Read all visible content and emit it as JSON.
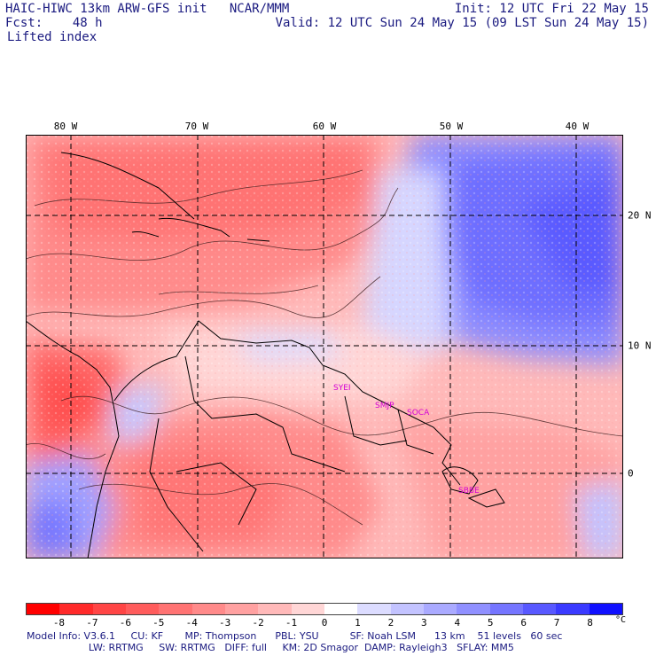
{
  "header": {
    "line1_left": "HAIC-HIWC 13km ARW-GFS init   NCAR/MMM",
    "line1_right": "Init: 12 UTC Fri 22 May 15",
    "line2_left": "Fcst:    48 h",
    "line2_right": "Valid: 12 UTC Sun 24 May 15 (09 LST Sun 24 May 15)",
    "field": "Lifted index"
  },
  "map": {
    "lon_labels": [
      "80 W",
      "70 W",
      "60 W",
      "50 W",
      "40 W"
    ],
    "lat_labels": [
      "20 N",
      "10 N",
      "0"
    ],
    "stations": [
      "SYEI",
      "SMJP",
      "SOCA",
      "SBBE"
    ],
    "station_color": "#d400d4"
  },
  "colorbar": {
    "labels": [
      "-8",
      "-7",
      "-6",
      "-5",
      "-4",
      "-3",
      "-2",
      "-1",
      "0",
      "1",
      "2",
      "3",
      "4",
      "5",
      "6",
      "7",
      "8"
    ],
    "unit": "°C",
    "colors": [
      "#ff0000",
      "#ff2a2a",
      "#ff4545",
      "#ff5c5c",
      "#ff7373",
      "#ff8a8a",
      "#ffa1a1",
      "#ffb9b9",
      "#ffd6d6",
      "#ffffff",
      "#dcdcff",
      "#c3c3ff",
      "#aaaaff",
      "#9090ff",
      "#7575ff",
      "#5858ff",
      "#3a3aff",
      "#1010ff"
    ]
  },
  "model_info": {
    "line1": "Model Info: V3.6.1     CU: KF       MP: Thompson      PBL: YSU          SF: Noah LSM      13 km    51 levels   60 sec",
    "line2": "                    LW: RRTMG     SW: RRTMG   DIFF: full     KM: 2D Smagor  DAMP: Rayleigh3   SFLAY: MM5"
  }
}
